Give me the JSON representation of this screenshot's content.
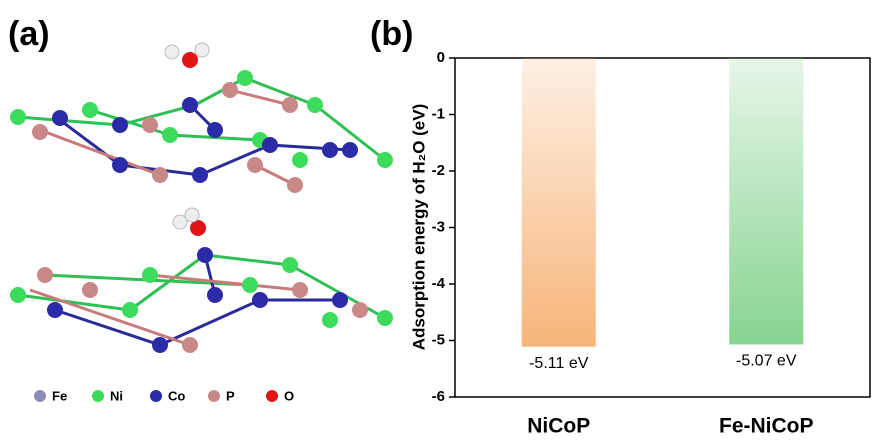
{
  "panels": {
    "a": "(a)",
    "b": "(b)"
  },
  "legend": [
    "Fe",
    "Ni",
    "Co",
    "P",
    "O"
  ],
  "chart_data": {
    "type": "bar",
    "ylabel": "Adsorption energy of H₂O (eV)",
    "categories": [
      "NiCoP",
      "Fe-NiCoP"
    ],
    "values": [
      -5.11,
      -5.07
    ],
    "value_labels": [
      "-5.11 eV",
      "-5.07 eV"
    ],
    "colors": [
      "#f7b579",
      "#86d490"
    ],
    "ylim": [
      -6,
      0
    ],
    "yticks": [
      0,
      -1,
      -2,
      -3,
      -4,
      -5,
      -6
    ]
  }
}
